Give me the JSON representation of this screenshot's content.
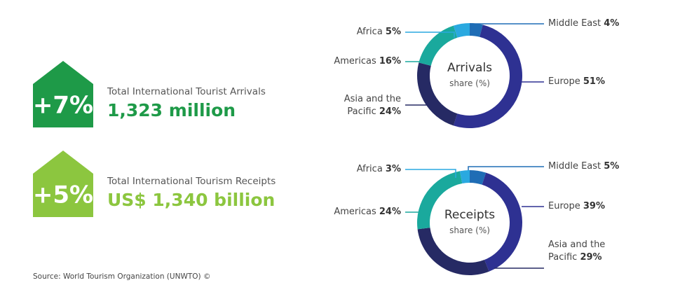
{
  "kpis": [
    {
      "change": "+7%",
      "label": "Total International Tourist Arrivals",
      "value": "1,323 million",
      "color": "#1e9a48"
    },
    {
      "change": "+5%",
      "label": "Total International Tourism Receipts",
      "value": "US$ 1,340 billion",
      "color": "#8cc63f"
    }
  ],
  "source": "Source: World Tourism Organization (UNWTO) ©",
  "chart_data": [
    {
      "type": "donut",
      "title": "Arrivals",
      "subtitle": "share (%)",
      "categories": [
        "Middle East",
        "Europe",
        "Asia and the Pacific",
        "Americas",
        "Africa"
      ],
      "values": [
        4,
        51,
        24,
        16,
        5
      ],
      "value_labels": [
        "4%",
        "51%",
        "24%",
        "16%",
        "5%"
      ],
      "colors": [
        "#1f6db5",
        "#2e3192",
        "#262a64",
        "#1aa99d",
        "#2aa9e0"
      ]
    },
    {
      "type": "donut",
      "title": "Receipts",
      "subtitle": "share (%)",
      "categories": [
        "Middle East",
        "Europe",
        "Asia and the Pacific",
        "Americas",
        "Africa"
      ],
      "values": [
        5,
        39,
        29,
        24,
        3
      ],
      "value_labels": [
        "5%",
        "39%",
        "29%",
        "24%",
        "3%"
      ],
      "colors": [
        "#1f6db5",
        "#2e3192",
        "#262a64",
        "#1aa99d",
        "#2aa9e0"
      ]
    }
  ]
}
